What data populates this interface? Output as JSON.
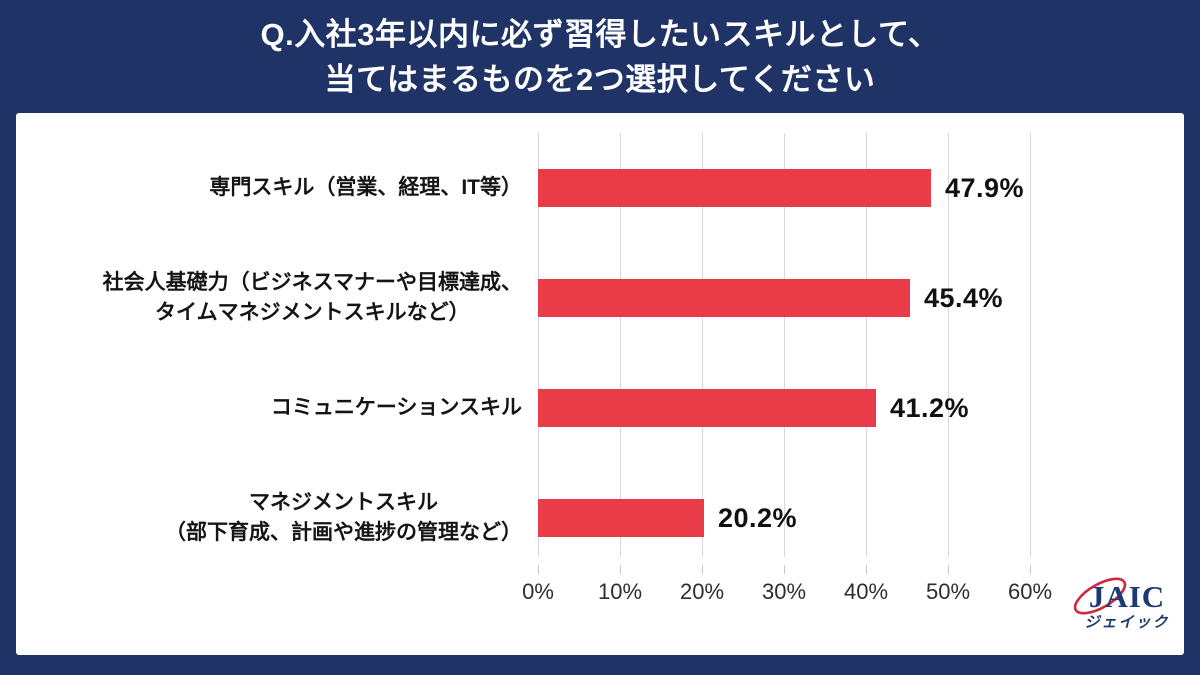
{
  "header": {
    "title_line1": "Q.入社3年以内に必ず習得したいスキルとして、",
    "title_line2": "当てはまるものを2つ選択してください"
  },
  "chart_data": {
    "type": "bar",
    "orientation": "horizontal",
    "title": "Q.入社3年以内に必ず習得したいスキルとして、当てはまるものを2つ選択してください",
    "categories": [
      "専門スキル（営業、経理、IT等）",
      "社会人基礎力（ビジネスマナーや目標達成、\nタイムマネジメントスキルなど）",
      "コミュニケーションスキル",
      "マネジメントスキル\n（部下育成、計画や進捗の管理など）"
    ],
    "values": [
      47.9,
      45.4,
      41.2,
      20.2
    ],
    "value_labels": [
      "47.9%",
      "45.4%",
      "41.2%",
      "20.2%"
    ],
    "x_ticks": [
      "0%",
      "10%",
      "20%",
      "30%",
      "40%",
      "50%",
      "60%"
    ],
    "xlim": [
      0,
      60
    ],
    "grid": true,
    "legend": "none",
    "bar_color": "#e93b48",
    "gridline_color": "#d8d8d8"
  },
  "colors": {
    "background_navy": "#1f3367",
    "card_white": "#ffffff",
    "bar_red": "#e93b48",
    "logo_navy": "#1d3a72",
    "logo_red": "#d0273d"
  },
  "logo": {
    "name": "JAIC",
    "subtitle": "ジェイック"
  }
}
